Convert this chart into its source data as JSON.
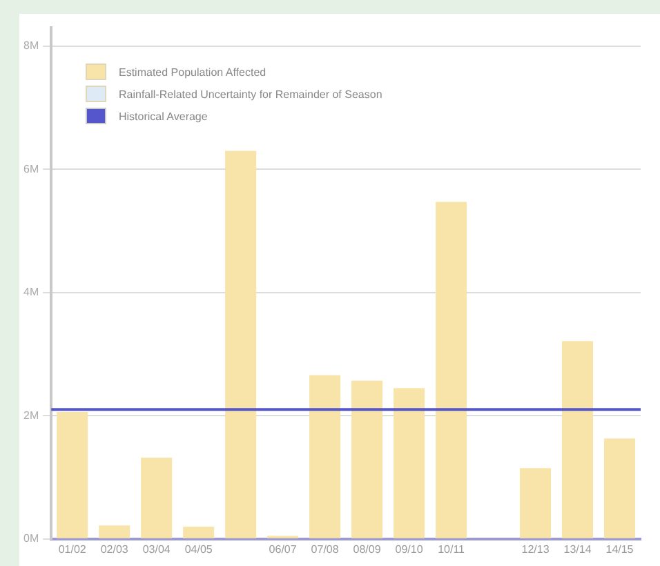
{
  "chart_data": {
    "type": "bar",
    "categories": [
      "01/02",
      "02/03",
      "03/04",
      "04/05",
      null,
      "06/07",
      "07/08",
      "08/09",
      "09/10",
      "10/11",
      null,
      "12/13",
      "13/14",
      "14/15"
    ],
    "series": [
      {
        "name": "Estimated Population Affected",
        "color": "#f8e3a8",
        "values": [
          2.06,
          0.22,
          1.32,
          0.2,
          6.3,
          0.05,
          2.66,
          2.57,
          2.45,
          5.47,
          null,
          1.15,
          3.21,
          1.63
        ]
      },
      {
        "name": "Rainfall-Related Uncertainty for Remainder of Season",
        "color": "#deebf7",
        "values": [
          null,
          null,
          null,
          null,
          null,
          null,
          null,
          null,
          null,
          null,
          null,
          null,
          null,
          null
        ]
      }
    ],
    "stacked": true,
    "ref_lines": [
      {
        "axis": "y",
        "value": 2.1,
        "label": "Historical Average",
        "color": "#5555cc"
      }
    ],
    "ylim": [
      0,
      8.3
    ],
    "yticks": [
      {
        "value": 0,
        "label": "0M"
      },
      {
        "value": 2,
        "label": "2M"
      },
      {
        "value": 4,
        "label": "4M"
      },
      {
        "value": 6,
        "label": "6M"
      },
      {
        "value": 8,
        "label": "8M"
      }
    ],
    "grid": "y",
    "legend": "top left"
  }
}
